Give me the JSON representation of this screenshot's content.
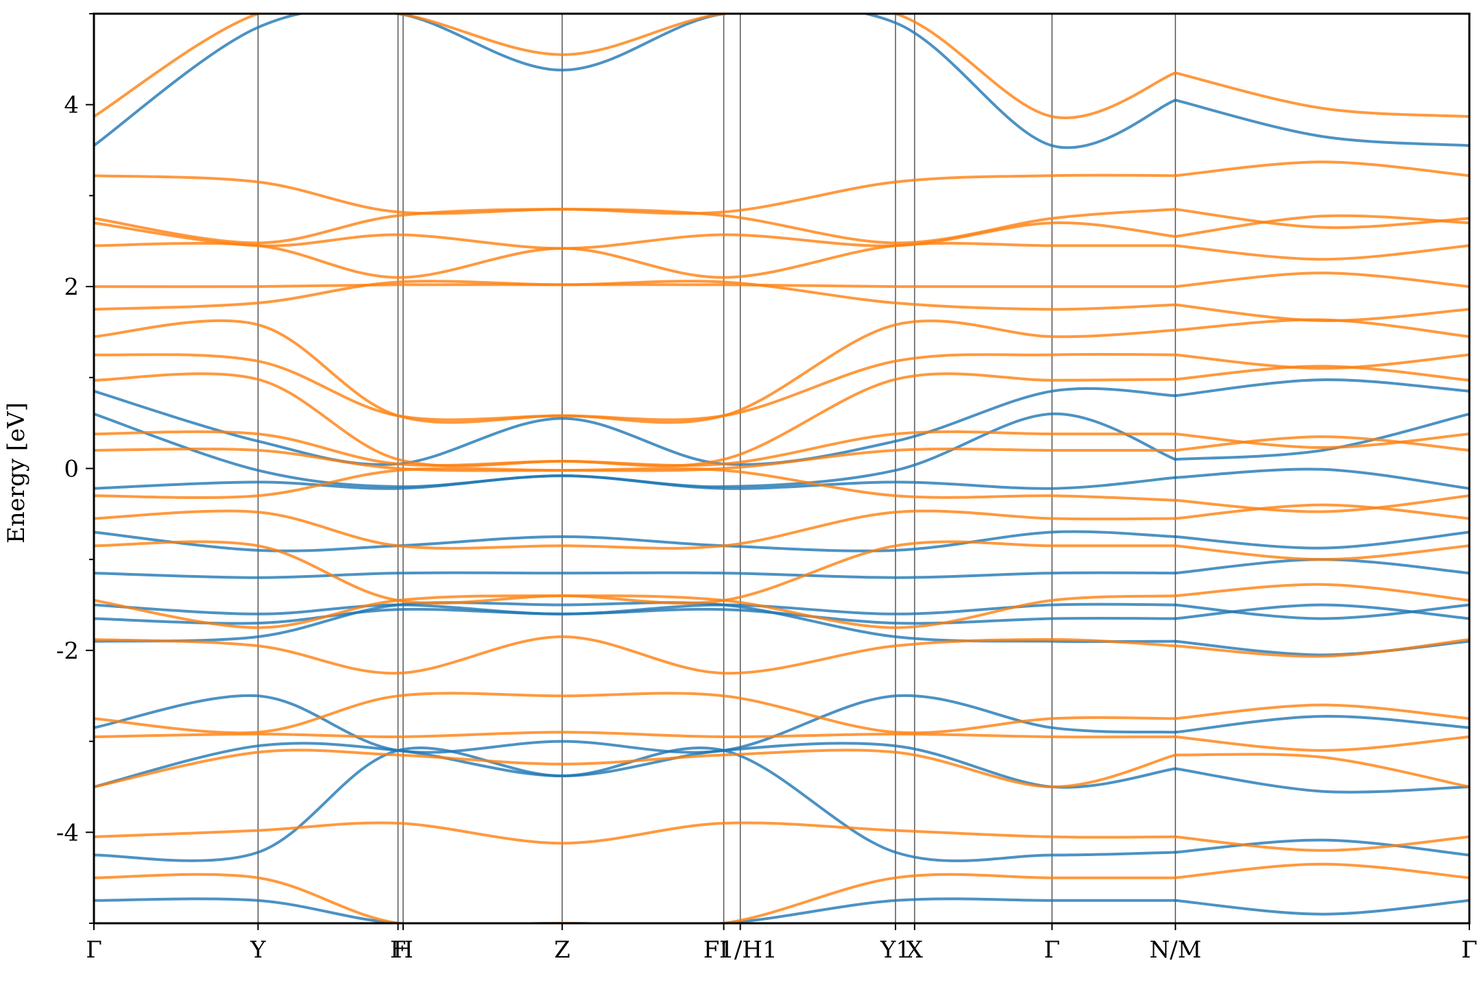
{
  "chart_data": {
    "type": "line",
    "title": "",
    "xlabel": "",
    "ylabel": "Energy [eV]",
    "ylim": [
      -5,
      5
    ],
    "yticks": [
      -4,
      -2,
      0,
      2,
      4
    ],
    "ytick_labels": [
      "-4",
      "-2",
      "0",
      "2",
      "4"
    ],
    "grid": false,
    "legend": "none",
    "xlim": [
      0,
      10.81
    ],
    "kpoints": [
      {
        "label": "Γ",
        "x": 0.0
      },
      {
        "label": "Y",
        "x": 1.29
      },
      {
        "label": "F",
        "x": 2.39
      },
      {
        "label": "H",
        "x": 2.43
      },
      {
        "label": "Z",
        "x": 3.68
      },
      {
        "label": "I",
        "x": 4.95
      },
      {
        "label": "F1/H1",
        "x": 5.08
      },
      {
        "label": "Y1",
        "x": 6.3
      },
      {
        "label": "X",
        "x": 6.45
      },
      {
        "label": "Γ",
        "x": 7.53
      },
      {
        "label": "N/M",
        "x": 8.5
      },
      {
        "label": "Γ",
        "x": 10.81
      }
    ],
    "series_colors": {
      "spin-up": "#1f77b4",
      "spin-down": "#ff7f0e"
    },
    "series": [
      {
        "spin": "spin-up",
        "x": [
          0,
          1.29,
          2.39,
          3.68,
          4.95,
          6.3,
          7.53,
          8.5
        ],
        "values": [
          3.55,
          4.85,
          5.0,
          4.38,
          5.0,
          4.9,
          3.55,
          4.05
        ]
      },
      {
        "spin": "spin-up",
        "x": [
          0,
          1.29,
          2.39,
          3.68,
          4.95,
          6.3,
          7.53,
          8.5
        ],
        "values": [
          0.85,
          0.3,
          0.05,
          0.55,
          0.05,
          0.3,
          0.85,
          0.8
        ]
      },
      {
        "spin": "spin-up",
        "x": [
          0,
          1.29,
          2.39,
          3.68,
          4.95,
          6.3,
          7.53,
          8.5
        ],
        "values": [
          0.6,
          -0.02,
          -0.2,
          -0.08,
          -0.2,
          -0.02,
          0.6,
          0.1
        ]
      },
      {
        "spin": "spin-up",
        "x": [
          0,
          1.29,
          2.39,
          3.68,
          4.95,
          6.3,
          7.53,
          8.5
        ],
        "values": [
          -0.22,
          -0.15,
          -0.22,
          -0.08,
          -0.22,
          -0.15,
          -0.22,
          -0.1
        ]
      },
      {
        "spin": "spin-up",
        "x": [
          0,
          1.29,
          2.39,
          3.68,
          4.95,
          6.3,
          7.53,
          8.5
        ],
        "values": [
          -0.7,
          -0.9,
          -0.85,
          -0.75,
          -0.85,
          -0.9,
          -0.7,
          -0.75
        ]
      },
      {
        "spin": "spin-up",
        "x": [
          0,
          1.29,
          2.39,
          3.68,
          4.95,
          6.3,
          7.53,
          8.5
        ],
        "values": [
          -1.15,
          -1.2,
          -1.15,
          -1.15,
          -1.15,
          -1.2,
          -1.15,
          -1.15
        ]
      },
      {
        "spin": "spin-up",
        "x": [
          0,
          1.29,
          2.39,
          3.68,
          4.95,
          6.3,
          7.53,
          8.5
        ],
        "values": [
          -1.5,
          -1.6,
          -1.5,
          -1.6,
          -1.5,
          -1.6,
          -1.5,
          -1.5
        ]
      },
      {
        "spin": "spin-up",
        "x": [
          0,
          1.29,
          2.39,
          3.68,
          4.95,
          6.3,
          7.53,
          8.5
        ],
        "values": [
          -1.65,
          -1.7,
          -1.55,
          -1.6,
          -1.55,
          -1.7,
          -1.65,
          -1.65
        ]
      },
      {
        "spin": "spin-up",
        "x": [
          0,
          1.29,
          2.39,
          3.68,
          4.95,
          6.3,
          7.53,
          8.5
        ],
        "values": [
          -1.9,
          -1.85,
          -1.5,
          -1.5,
          -1.5,
          -1.85,
          -1.9,
          -1.9
        ]
      },
      {
        "spin": "spin-up",
        "x": [
          0,
          1.29,
          2.39,
          3.68,
          4.95,
          6.3,
          7.53,
          8.5
        ],
        "values": [
          -2.85,
          -2.5,
          -3.1,
          -3.0,
          -3.1,
          -2.5,
          -2.85,
          -2.9
        ]
      },
      {
        "spin": "spin-up",
        "x": [
          0,
          1.29,
          2.39,
          3.68,
          4.95,
          6.3,
          7.53,
          8.5
        ],
        "values": [
          -3.5,
          -3.05,
          -3.1,
          -3.38,
          -3.1,
          -3.05,
          -3.5,
          -3.3
        ]
      },
      {
        "spin": "spin-up",
        "x": [
          0,
          1.29,
          2.39,
          3.68,
          4.95,
          6.3,
          7.53,
          8.5
        ],
        "values": [
          -4.25,
          -4.22,
          -3.1,
          -3.38,
          -3.1,
          -4.22,
          -4.25,
          -4.22
        ]
      },
      {
        "spin": "spin-up",
        "x": [
          0,
          1.29,
          2.39,
          3.68,
          4.95,
          6.3,
          7.53,
          8.5
        ],
        "values": [
          -4.75,
          -4.75,
          -5.0,
          -5.0,
          -5.0,
          -4.75,
          -4.75,
          -4.75
        ]
      },
      {
        "spin": "spin-down",
        "x": [
          0,
          1.29,
          2.39,
          3.68,
          4.95,
          6.3,
          7.53,
          8.5
        ],
        "values": [
          3.87,
          5.0,
          5.0,
          4.55,
          5.0,
          5.0,
          3.87,
          4.35
        ]
      },
      {
        "spin": "spin-down",
        "x": [
          0,
          1.29,
          2.39,
          3.68,
          4.95,
          6.3,
          7.53,
          8.5
        ],
        "values": [
          3.22,
          3.15,
          2.82,
          2.85,
          2.82,
          3.15,
          3.22,
          3.22
        ]
      },
      {
        "spin": "spin-down",
        "x": [
          0,
          1.29,
          2.39,
          3.68,
          4.95,
          6.3,
          7.53,
          8.5
        ],
        "values": [
          2.75,
          2.48,
          2.78,
          2.85,
          2.78,
          2.48,
          2.75,
          2.85
        ]
      },
      {
        "spin": "spin-down",
        "x": [
          0,
          1.29,
          2.39,
          3.68,
          4.95,
          6.3,
          7.53,
          8.5
        ],
        "values": [
          2.7,
          2.45,
          2.57,
          2.42,
          2.57,
          2.45,
          2.7,
          2.55
        ]
      },
      {
        "spin": "spin-down",
        "x": [
          0,
          1.29,
          2.39,
          3.68,
          4.95,
          6.3,
          7.53,
          8.5
        ],
        "values": [
          2.45,
          2.45,
          2.1,
          2.42,
          2.1,
          2.45,
          2.45,
          2.45
        ]
      },
      {
        "spin": "spin-down",
        "x": [
          0,
          1.29,
          2.39,
          3.68,
          4.95,
          6.3,
          7.53,
          8.5
        ],
        "values": [
          2.0,
          2.0,
          2.02,
          2.02,
          2.02,
          2.0,
          2.0,
          2.0
        ]
      },
      {
        "spin": "spin-down",
        "x": [
          0,
          1.29,
          2.39,
          3.68,
          4.95,
          6.3,
          7.53,
          8.5
        ],
        "values": [
          1.75,
          1.82,
          2.05,
          2.02,
          2.05,
          1.82,
          1.75,
          1.8
        ]
      },
      {
        "spin": "spin-down",
        "x": [
          0,
          1.29,
          2.39,
          3.68,
          4.95,
          6.3,
          7.53,
          8.5
        ],
        "values": [
          1.45,
          1.58,
          0.58,
          0.58,
          0.58,
          1.58,
          1.45,
          1.52
        ]
      },
      {
        "spin": "spin-down",
        "x": [
          0,
          1.29,
          2.39,
          3.68,
          4.95,
          6.3,
          7.53,
          8.5
        ],
        "values": [
          1.25,
          1.18,
          0.58,
          0.58,
          0.58,
          1.18,
          1.25,
          1.25
        ]
      },
      {
        "spin": "spin-down",
        "x": [
          0,
          1.29,
          2.39,
          3.68,
          4.95,
          6.3,
          7.53,
          8.5
        ],
        "values": [
          0.97,
          0.98,
          0.1,
          0.08,
          0.1,
          0.98,
          0.97,
          0.98
        ]
      },
      {
        "spin": "spin-down",
        "x": [
          0,
          1.29,
          2.39,
          3.68,
          4.95,
          6.3,
          7.53,
          8.5
        ],
        "values": [
          0.38,
          0.38,
          0.05,
          0.08,
          0.05,
          0.38,
          0.38,
          0.38
        ]
      },
      {
        "spin": "spin-down",
        "x": [
          0,
          1.29,
          2.39,
          3.68,
          4.95,
          6.3,
          7.53,
          8.5
        ],
        "values": [
          0.2,
          0.2,
          0.0,
          -0.02,
          0.0,
          0.2,
          0.2,
          0.2
        ]
      },
      {
        "spin": "spin-down",
        "x": [
          0,
          1.29,
          2.39,
          3.68,
          4.95,
          6.3,
          7.53,
          8.5
        ],
        "values": [
          -0.3,
          -0.3,
          -0.02,
          -0.02,
          -0.02,
          -0.3,
          -0.3,
          -0.35
        ]
      },
      {
        "spin": "spin-down",
        "x": [
          0,
          1.29,
          2.39,
          3.68,
          4.95,
          6.3,
          7.53,
          8.5
        ],
        "values": [
          -0.55,
          -0.48,
          -0.85,
          -0.85,
          -0.85,
          -0.48,
          -0.55,
          -0.55
        ]
      },
      {
        "spin": "spin-down",
        "x": [
          0,
          1.29,
          2.39,
          3.68,
          4.95,
          6.3,
          7.53,
          8.5
        ],
        "values": [
          -0.85,
          -0.85,
          -1.45,
          -1.4,
          -1.45,
          -0.85,
          -0.85,
          -0.85
        ]
      },
      {
        "spin": "spin-down",
        "x": [
          0,
          1.29,
          2.39,
          3.68,
          4.95,
          6.3,
          7.53,
          8.5
        ],
        "values": [
          -1.45,
          -1.75,
          -1.45,
          -1.4,
          -1.45,
          -1.75,
          -1.45,
          -1.4
        ]
      },
      {
        "spin": "spin-down",
        "x": [
          0,
          1.29,
          2.39,
          3.68,
          4.95,
          6.3,
          7.53,
          8.5
        ],
        "values": [
          -1.88,
          -1.95,
          -2.25,
          -1.85,
          -2.25,
          -1.95,
          -1.88,
          -1.95
        ]
      },
      {
        "spin": "spin-down",
        "x": [
          0,
          1.29,
          2.39,
          3.68,
          4.95,
          6.3,
          7.53,
          8.5
        ],
        "values": [
          -2.75,
          -2.9,
          -2.5,
          -2.5,
          -2.5,
          -2.9,
          -2.75,
          -2.75
        ]
      },
      {
        "spin": "spin-down",
        "x": [
          0,
          1.29,
          2.39,
          3.68,
          4.95,
          6.3,
          7.53,
          8.5
        ],
        "values": [
          -2.95,
          -2.92,
          -2.95,
          -2.9,
          -2.95,
          -2.92,
          -2.95,
          -2.95
        ]
      },
      {
        "spin": "spin-down",
        "x": [
          0,
          1.29,
          2.39,
          3.68,
          4.95,
          6.3,
          7.53,
          8.5
        ],
        "values": [
          -3.5,
          -3.12,
          -3.15,
          -3.25,
          -3.15,
          -3.12,
          -3.5,
          -3.15
        ]
      },
      {
        "spin": "spin-down",
        "x": [
          0,
          1.29,
          2.39,
          3.68,
          4.95,
          6.3,
          7.53,
          8.5
        ],
        "values": [
          -4.05,
          -3.98,
          -3.9,
          -4.12,
          -3.9,
          -3.98,
          -4.05,
          -4.05
        ]
      },
      {
        "spin": "spin-down",
        "x": [
          0,
          1.29,
          2.39,
          3.68,
          4.95,
          6.3,
          7.53,
          8.5
        ],
        "values": [
          -4.5,
          -4.5,
          -5.0,
          -5.0,
          -5.0,
          -4.5,
          -4.5,
          -4.5
        ]
      }
    ]
  }
}
